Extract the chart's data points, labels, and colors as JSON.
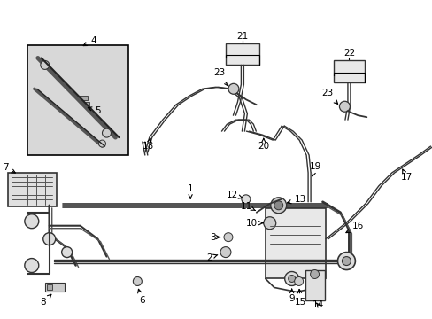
{
  "bg_color": "#ffffff",
  "line_color": "#000000",
  "gray_fill": "#d0d0d0",
  "light_gray": "#e8e8e8",
  "fig_width": 4.89,
  "fig_height": 3.6,
  "dpi": 100,
  "fs": 7.5,
  "fw": "normal"
}
